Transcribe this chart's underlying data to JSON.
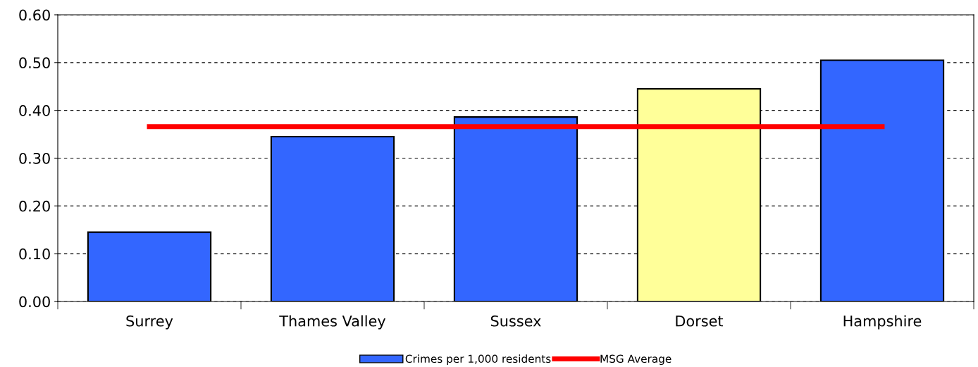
{
  "chart_data": {
    "type": "bar",
    "categories": [
      "Surrey",
      "Thames Valley",
      "Sussex",
      "Dorset",
      "Hampshire"
    ],
    "series": [
      {
        "name": "Crimes per 1,000 residents",
        "color": "#3366ff",
        "colors": [
          "#3366ff",
          "#3366ff",
          "#3366ff",
          "#ffff99",
          "#3366ff"
        ],
        "values": [
          0.145,
          0.345,
          0.386,
          0.445,
          0.505
        ]
      },
      {
        "name": "MSG Average",
        "type": "line",
        "color": "#ff0000",
        "values": [
          0.366,
          0.366,
          0.366,
          0.366,
          0.366
        ]
      }
    ],
    "ylim": [
      0,
      0.6
    ],
    "yticks": [
      {
        "value": 0,
        "label": "0.00"
      },
      {
        "value": 0.1,
        "label": "0.10"
      },
      {
        "value": 0.2,
        "label": "0.20"
      },
      {
        "value": 0.3,
        "label": "0.30"
      },
      {
        "value": 0.4,
        "label": "0.40"
      },
      {
        "value": 0.5,
        "label": "0.50"
      },
      {
        "value": 0.6,
        "label": "0.60"
      }
    ],
    "grid": "y",
    "legend": "bottom",
    "marker": "none",
    "line_style": "solid"
  }
}
